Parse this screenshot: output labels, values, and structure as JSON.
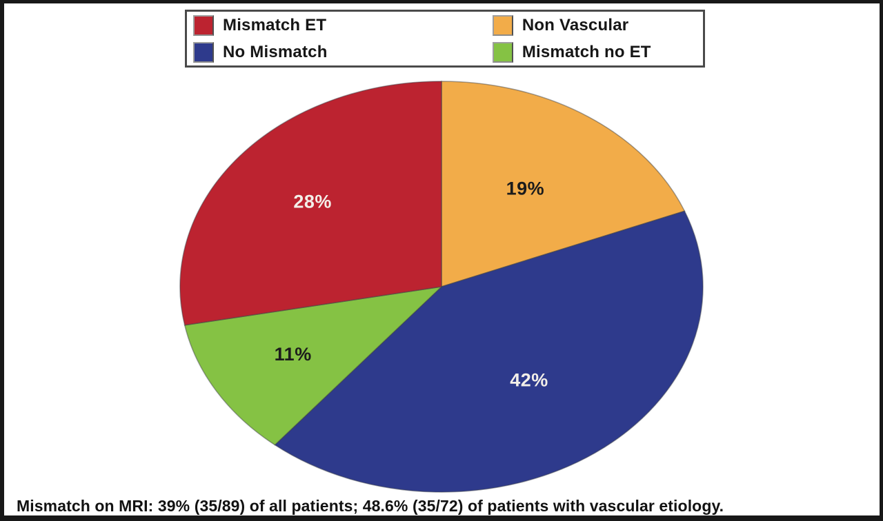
{
  "figure": {
    "background": "#ffffff",
    "frame_border_color": "#181818"
  },
  "legend": {
    "border_color": "#4a4a4a",
    "items": [
      {
        "label": "Mismatch ET",
        "color": "#bc2330"
      },
      {
        "label": "Non Vascular",
        "color": "#f2ac49"
      },
      {
        "label": "No Mismatch",
        "color": "#2e3a8c"
      },
      {
        "label": "Mismatch no ET",
        "color": "#85c244"
      }
    ]
  },
  "chart_data": {
    "type": "pie",
    "title": "",
    "direction": "clockwise",
    "start_angle_deg_from_top": 0,
    "legend_position": "top",
    "slices": [
      {
        "label": "Non Vascular",
        "value": 19,
        "display": "19%",
        "color": "#f2ac49",
        "label_color": "#1c1c1c",
        "label_r": 0.57
      },
      {
        "label": "No Mismatch",
        "value": 42,
        "display": "42%",
        "color": "#2e3a8c",
        "label_color": "#f3efe9",
        "label_r": 0.57
      },
      {
        "label": "Mismatch no ET",
        "value": 11,
        "display": "11%",
        "color": "#85c244",
        "label_color": "#1c1c1c",
        "label_r": 0.66
      },
      {
        "label": "Mismatch ET",
        "value": 28,
        "display": "28%",
        "color": "#bc2330",
        "label_color": "#f3efe9",
        "label_r": 0.64
      }
    ]
  },
  "caption": {
    "text": "Mismatch on MRI: 39% (35/89) of all patients; 48.6% (35/72) of patients with vascular etiology."
  }
}
